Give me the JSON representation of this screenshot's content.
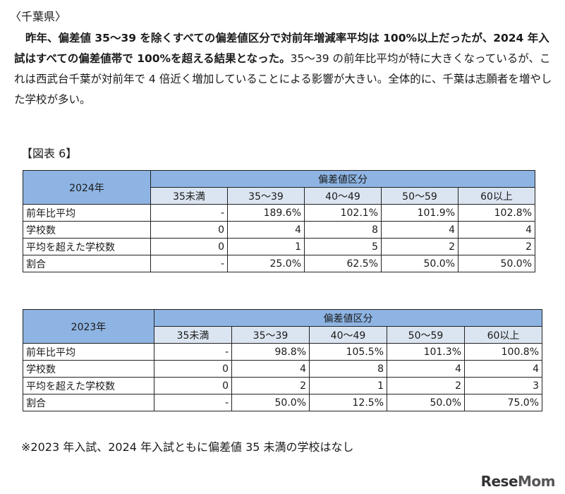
{
  "section_heading": "〈千葉県〉",
  "paragraph": {
    "bold_part": "昨年、偏差値 35～39 を除くすべての偏差値区分で対前年増減率平均は 100%以上だったが、2024 年入試はすべての偏差値帯で 100%を超える結果となった。",
    "normal_part": "35～39 の前年比平均が特に大きくなっているが、これは西武台千葉が対前年で 4 倍近く増加していることによる影響が大きい。全体的に、千葉は志願者を増やした学校が多い。"
  },
  "figure_label": "【図表 6】",
  "tables": [
    {
      "year": "2024年",
      "group_header": "偏差値区分",
      "columns": [
        "35未満",
        "35～39",
        "40～49",
        "50～59",
        "60以上"
      ],
      "rows": [
        {
          "label": "前年比平均",
          "values": [
            "-",
            "189.6%",
            "102.1%",
            "101.9%",
            "102.8%"
          ]
        },
        {
          "label": "学校数",
          "values": [
            "0",
            "4",
            "8",
            "4",
            "4"
          ]
        },
        {
          "label": "平均を超えた学校数",
          "values": [
            "0",
            "1",
            "5",
            "2",
            "2"
          ]
        },
        {
          "label": "割合",
          "values": [
            "-",
            "25.0%",
            "62.5%",
            "50.0%",
            "50.0%"
          ]
        }
      ]
    },
    {
      "year": "2023年",
      "group_header": "偏差値区分",
      "columns": [
        "35未満",
        "35～39",
        "40～49",
        "50～59",
        "60以上"
      ],
      "rows": [
        {
          "label": "前年比平均",
          "values": [
            "-",
            "98.8%",
            "105.5%",
            "101.3%",
            "100.8%"
          ]
        },
        {
          "label": "学校数",
          "values": [
            "0",
            "4",
            "8",
            "4",
            "4"
          ]
        },
        {
          "label": "平均を超えた学校数",
          "values": [
            "0",
            "2",
            "1",
            "2",
            "3"
          ]
        },
        {
          "label": "割合",
          "values": [
            "-",
            "50.0%",
            "12.5%",
            "50.0%",
            "75.0%"
          ]
        }
      ]
    }
  ],
  "note": "※2023 年入試、2024 年入試ともに偏差値 35 未満の学校はなし",
  "logo": {
    "part1": "Rese",
    "part2": "Mom"
  }
}
